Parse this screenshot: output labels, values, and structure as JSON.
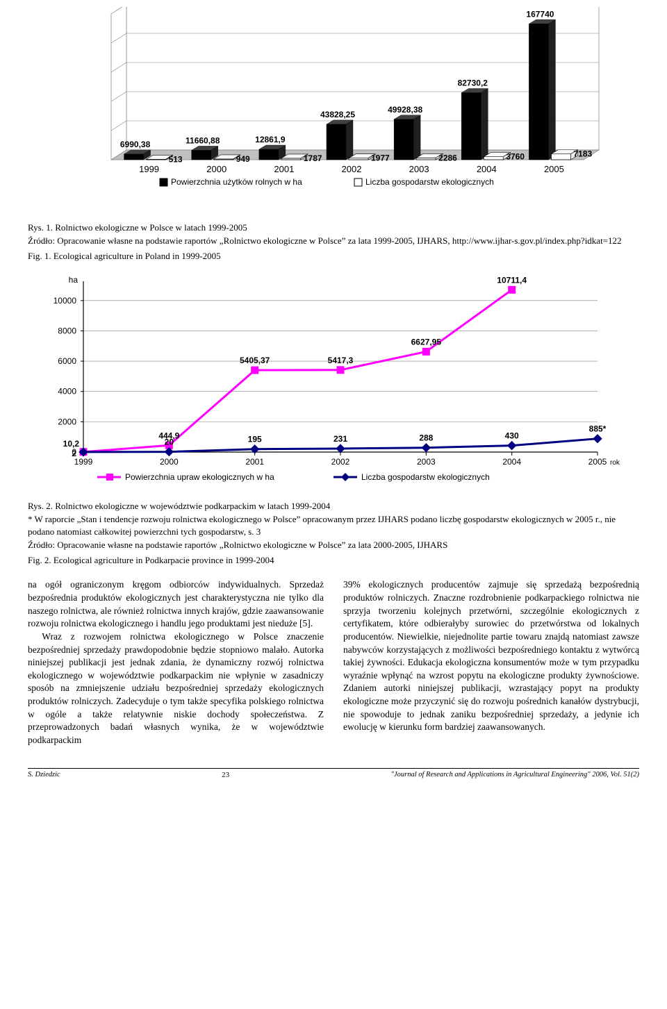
{
  "chart1": {
    "type": "3d-bar",
    "background_color": "#ffffff",
    "wall_color": "#ffffff",
    "wall_border": "#808080",
    "floor_color": "#c0c0c0",
    "categories": [
      "1999",
      "2000",
      "2001",
      "2002",
      "2003",
      "2004",
      "2005"
    ],
    "series": [
      {
        "name": "Powierzchnia użytków rolnych w ha",
        "color": "#000000",
        "values": [
          6990.38,
          11660.88,
          12861.9,
          43828.25,
          49928.38,
          82730.2,
          167740
        ],
        "value_labels": [
          "6990,38",
          "11660,88",
          "12861,9",
          "43828,25",
          "49928,38",
          "82730,2",
          "167740"
        ]
      },
      {
        "name": "Liczba gospodarstw ekologicznych",
        "color": "#ffffff",
        "border": "#000000",
        "values": [
          513,
          949,
          1787,
          1977,
          2286,
          3760,
          7183
        ],
        "value_labels": [
          "513",
          "949",
          "1787",
          "1977",
          "2286",
          "3760",
          "7183"
        ]
      }
    ],
    "label_fontsize": 12,
    "axis_fontsize": 13,
    "legend": {
      "items": [
        {
          "swatch": "#000000",
          "label": "Powierzchnia użytków rolnych w ha"
        },
        {
          "swatch": "#ffffff",
          "border": "#000000",
          "label": "Liczba gospodarstw ekologicznych"
        }
      ]
    }
  },
  "caption1": {
    "rys": "Rys. 1. Rolnictwo ekologiczne w Polsce w latach 1999-2005",
    "source": "Źródło: Opracowanie własne na podstawie raportów „Rolnictwo ekologiczne w Polsce” za lata 1999-2005, IJHARS, http://www.ijhar-s.gov.pl/index.php?idkat=122",
    "fig": "Fig. 1. Ecological agriculture in Poland in 1999-2005"
  },
  "chart2": {
    "type": "line",
    "background_color": "#ffffff",
    "grid_color": "#808080",
    "yaxis_title": "ha",
    "xaxis_title": "rok",
    "ylim": [
      0,
      10000
    ],
    "ytick_step": 2000,
    "yticks": [
      "0",
      "2000",
      "4000",
      "6000",
      "8000",
      "10000"
    ],
    "categories": [
      "1999",
      "2000",
      "2001",
      "2002",
      "2003",
      "2004",
      "2005"
    ],
    "series": [
      {
        "name": "Powierzchnia upraw ekologicznych w ha",
        "color": "#ff00ff",
        "marker": "square",
        "marker_fill": "#ff00ff",
        "line_width": 3,
        "values": [
          10.2,
          444.9,
          5405.37,
          5417.3,
          6627.95,
          10711.4,
          null
        ],
        "value_labels": [
          "10,2",
          "444,9",
          "5405,37",
          "5417,3",
          "6627,95",
          "10711,4",
          ""
        ]
      },
      {
        "name": "Liczba gospodarstw ekologicznych",
        "color": "#000080",
        "marker": "diamond",
        "marker_fill": "#000080",
        "line_width": 3,
        "values": [
          2,
          20,
          195,
          231,
          288,
          430,
          885
        ],
        "value_labels": [
          "2",
          "20",
          "195",
          "231",
          "288",
          "430",
          "885*"
        ]
      }
    ],
    "label_fontsize": 12,
    "axis_fontsize": 12,
    "legend": {
      "items": [
        {
          "color": "#ff00ff",
          "marker": "square",
          "label": "Powierzchnia upraw ekologicznych w ha"
        },
        {
          "color": "#000080",
          "marker": "diamond",
          "label": "Liczba gospodarstw ekologicznych"
        }
      ]
    }
  },
  "caption2": {
    "rys": "Rys. 2. Rolnictwo ekologiczne w województwie podkarpackim w latach 1999-2004",
    "note": "* W raporcie „Stan i tendencje rozwoju rolnictwa ekologicznego w Polsce” opracowanym przez IJHARS podano liczbę gospodarstw ekologicznych w 2005 r., nie podano natomiast całkowitej powierzchni tych gospodarstw, s. 3",
    "source": "Źródło: Opracowanie własne na podstawie raportów „Rolnictwo ekologiczne w Polsce” za lata 2000-2005, IJHARS",
    "fig": "Fig. 2. Ecological agriculture in Podkarpacie province in 1999-2004"
  },
  "body_text": {
    "left1": "na ogół ograniczonym kręgom odbiorców indywidualnych. Sprzedaż bezpośrednia produktów ekologicznych jest charakterystyczna nie tylko dla naszego rolnictwa, ale również rolnictwa innych krajów, gdzie zaawansowanie rozwoju rolnictwa ekologicznego i handlu jego produktami jest nieduże [5].",
    "left2": "Wraz z rozwojem rolnictwa ekologicznego w Polsce znaczenie bezpośredniej sprzedaży prawdopodobnie będzie stopniowo malało. Autorka niniejszej publikacji jest jednak zdania, że dynamiczny rozwój rolnictwa ekologicznego w województwie podkarpackim nie wpłynie w zasadniczy sposób na zmniejszenie udziału bezpośredniej sprzedaży ekologicznych produktów rolniczych. Zadecyduje o tym także specyfika polskiego rolnictwa w ogóle a także relatywnie niskie dochody społeczeństwa. Z przeprowadzonych badań własnych wynika, że w województwie podkarpackim",
    "right1": "39% ekologicznych producentów zajmuje się sprzedażą bezpośrednią produktów rolniczych. Znaczne rozdrobnienie podkarpackiego rolnictwa nie sprzyja tworzeniu kolejnych przetwórni, szczególnie ekologicznych z certyfikatem, które odbierałyby surowiec do przetwórstwa od lokalnych producentów. Niewielkie, niejednolite partie towaru znajdą natomiast zawsze nabywców korzystających z możliwości bezpośredniego kontaktu z wytwórcą takiej żywności. Edukacja ekologiczna konsumentów może w tym przypadku wyraźnie wpłynąć na wzrost popytu na ekologiczne produkty żywnościowe. Zdaniem autorki niniejszej publikacji, wzrastający popyt na produkty ekologiczne może przyczynić się do rozwoju pośrednich kanałów dystrybucji, nie spowoduje to jednak zaniku bezpośredniej sprzedaży, a jedynie ich ewolucję w kierunku form bardziej zaawansowanych."
  },
  "footer": {
    "author": "S. Dziedzic",
    "page": "23",
    "journal": "\"Journal of Research and Applications in Agricultural Engineering\" 2006, Vol. 51(2)"
  }
}
